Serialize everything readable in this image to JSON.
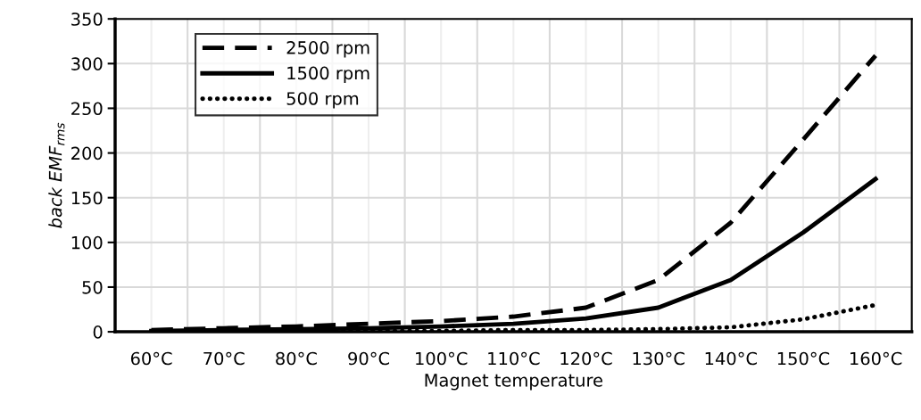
{
  "chart_data": {
    "type": "line",
    "xlabel": "Magnet temperature",
    "ylabel": "back EMF$_{rms}$",
    "categories": [
      "60°C",
      "70°C",
      "80°C",
      "90°C",
      "100°C",
      "110°C",
      "120°C",
      "130°C",
      "140°C",
      "150°C",
      "160°C"
    ],
    "series": [
      {
        "name": "2500 rpm",
        "color": "#000000",
        "line_style": "dashed",
        "values": [
          2,
          4,
          6,
          9,
          12,
          17,
          27,
          58,
          122,
          215,
          309
        ]
      },
      {
        "name": "1500 rpm",
        "color": "#000000",
        "line_style": "solid",
        "values": [
          1,
          2,
          3,
          4,
          6,
          9,
          15,
          27,
          58,
          111,
          171
        ]
      },
      {
        "name": "500 rpm",
        "color": "#000000",
        "line_style": "dotted",
        "values": [
          0,
          1,
          1,
          1,
          1,
          2,
          2,
          3,
          5,
          14,
          30
        ]
      }
    ],
    "ylim": [
      0,
      350
    ],
    "yticks": [
      0,
      50,
      100,
      150,
      200,
      250,
      300,
      350
    ],
    "grid": true,
    "legend": "top left",
    "marker": "none"
  }
}
